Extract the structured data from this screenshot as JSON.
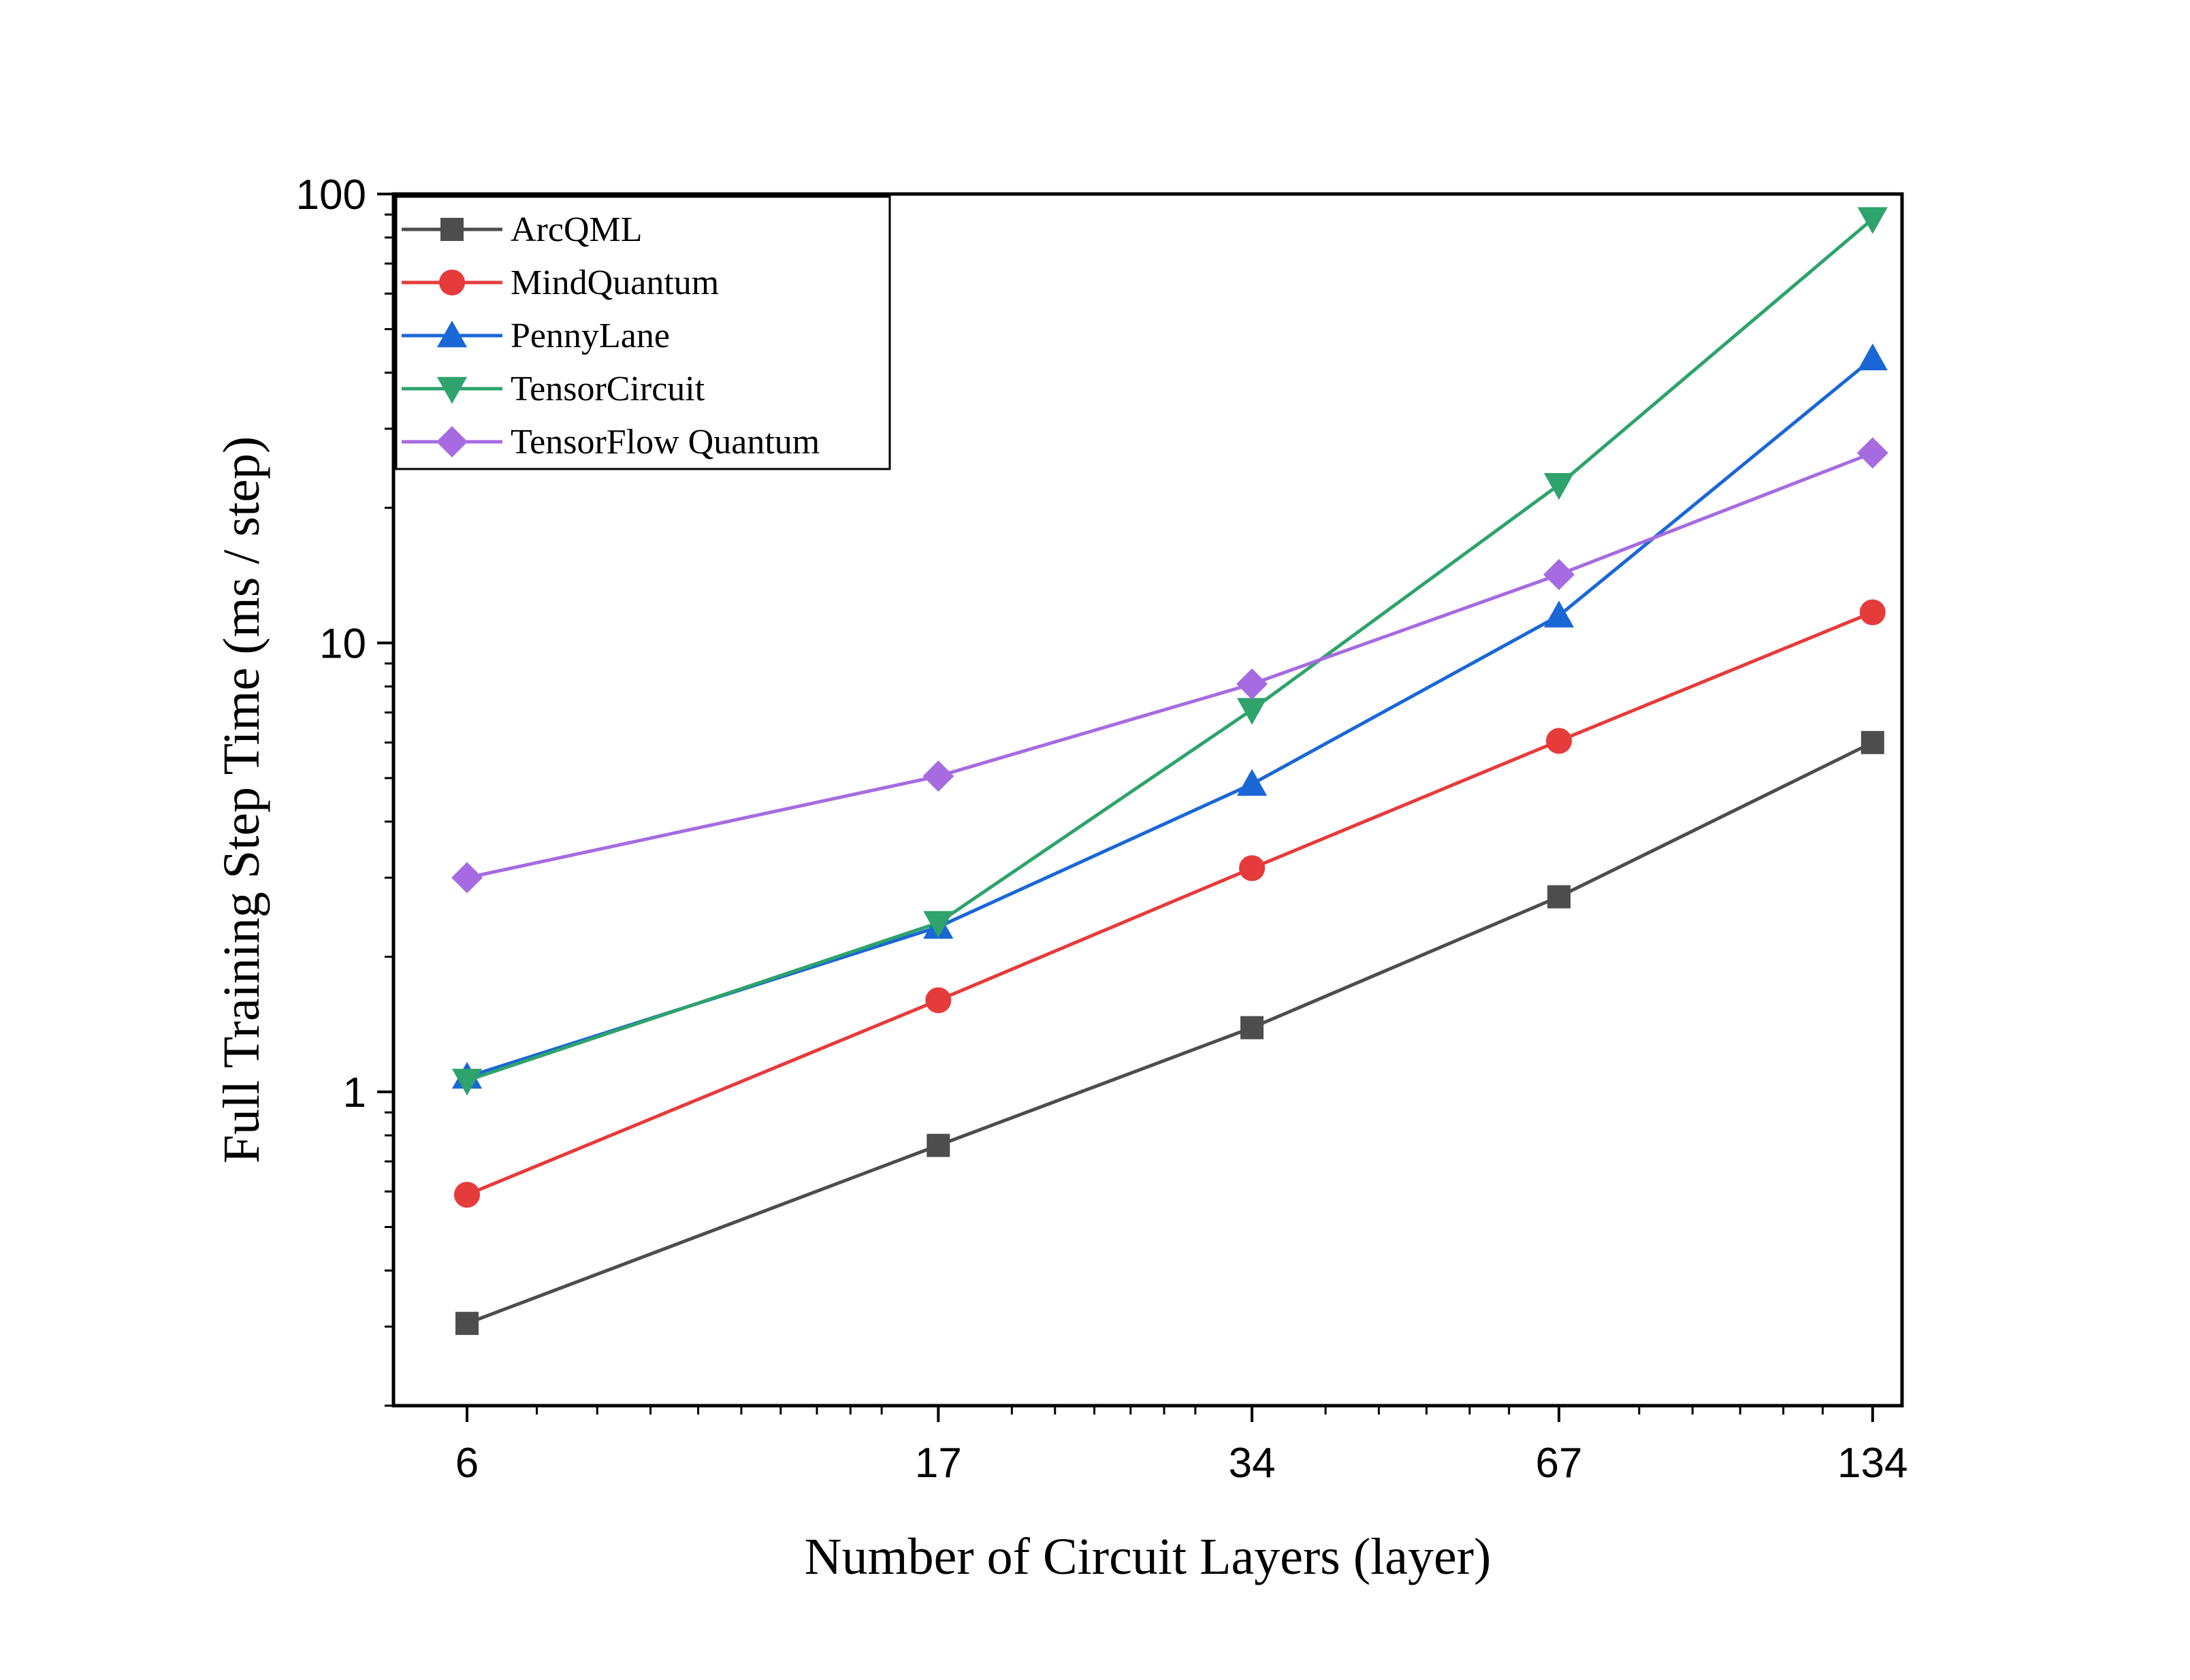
{
  "chart_data": {
    "type": "line",
    "title": "",
    "xlabel": "Number of Circuit Layers (layer)",
    "ylabel": "Full Training Step Time (ms / step)",
    "x_scale": "log",
    "y_scale": "log",
    "x": [
      6,
      17,
      34,
      67,
      134
    ],
    "x_tick_labels": [
      "6",
      "17",
      "34",
      "67",
      "134"
    ],
    "xlim": [
      5.1,
      143
    ],
    "ylim": [
      0.2,
      100
    ],
    "y_ticks": [
      1,
      10,
      100
    ],
    "y_tick_labels": [
      "1",
      "10",
      "100"
    ],
    "grid": false,
    "legend_position": "top-left",
    "series": [
      {
        "name": "ArcQML",
        "color": "#4d4d4d",
        "marker": "square",
        "values": [
          0.305,
          0.76,
          1.39,
          2.72,
          6.0
        ]
      },
      {
        "name": "MindQuantum",
        "color": "#e63b3b",
        "marker": "circle",
        "values": [
          0.59,
          1.6,
          3.15,
          6.05,
          11.7
        ]
      },
      {
        "name": "PennyLane",
        "color": "#1a67d6",
        "marker": "triangle-up",
        "values": [
          1.08,
          2.33,
          4.85,
          11.5,
          43.0
        ]
      },
      {
        "name": "TensorCircuit",
        "color": "#2ea36b",
        "marker": "triangle-down",
        "values": [
          1.06,
          2.38,
          7.1,
          22.5,
          88.0
        ]
      },
      {
        "name": "TensorFlow Quantum",
        "color": "#a66be0",
        "marker": "diamond",
        "values": [
          3.0,
          5.05,
          8.1,
          14.2,
          26.5
        ]
      }
    ]
  }
}
